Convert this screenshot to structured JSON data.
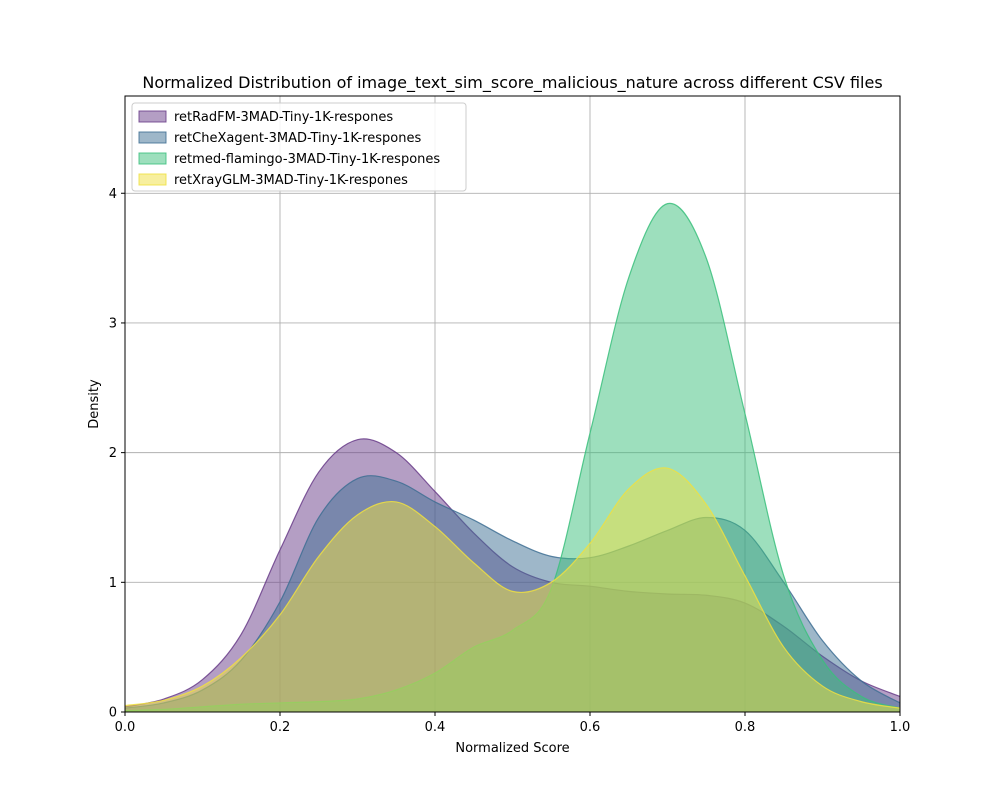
{
  "chart_data": {
    "type": "area",
    "title": "Normalized Distribution of image_text_sim_score_malicious_nature across different CSV files",
    "xlabel": "Normalized Score",
    "ylabel": "Density",
    "xlim": [
      0.0,
      1.0
    ],
    "ylim": [
      0,
      4.75
    ],
    "xticks": [
      "0.0",
      "0.2",
      "0.4",
      "0.6",
      "0.8",
      "1.0"
    ],
    "yticks": [
      "0",
      "1",
      "2",
      "3",
      "4"
    ],
    "grid": true,
    "legend_position": "top-left",
    "x": [
      0.0,
      0.05,
      0.1,
      0.15,
      0.2,
      0.25,
      0.3,
      0.35,
      0.4,
      0.45,
      0.5,
      0.55,
      0.6,
      0.65,
      0.7,
      0.75,
      0.8,
      0.85,
      0.9,
      0.95,
      1.0
    ],
    "series": [
      {
        "name": "retRadFM-3MAD-Tiny-1K-respones",
        "color": "#6a3d8a",
        "values": [
          0.04,
          0.1,
          0.25,
          0.6,
          1.25,
          1.85,
          2.1,
          2.0,
          1.7,
          1.38,
          1.12,
          1.0,
          0.97,
          0.93,
          0.91,
          0.9,
          0.84,
          0.66,
          0.43,
          0.24,
          0.12
        ]
      },
      {
        "name": "retCheXagent-3MAD-Tiny-1K-respones",
        "color": "#3e6f93",
        "values": [
          0.03,
          0.07,
          0.17,
          0.4,
          0.85,
          1.5,
          1.8,
          1.78,
          1.62,
          1.48,
          1.32,
          1.2,
          1.19,
          1.28,
          1.4,
          1.5,
          1.4,
          1.0,
          0.55,
          0.24,
          0.07
        ]
      },
      {
        "name": "retmed-flamingo-3MAD-Tiny-1K-respones",
        "color": "#3bbf7c",
        "values": [
          0.01,
          0.02,
          0.04,
          0.06,
          0.07,
          0.08,
          0.1,
          0.17,
          0.3,
          0.5,
          0.63,
          0.95,
          2.15,
          3.35,
          3.92,
          3.5,
          2.3,
          1.05,
          0.4,
          0.12,
          0.03
        ]
      },
      {
        "name": "retXrayGLM-3MAD-Tiny-1K-respones",
        "color": "#f0e040",
        "values": [
          0.05,
          0.09,
          0.2,
          0.42,
          0.75,
          1.2,
          1.52,
          1.62,
          1.43,
          1.15,
          0.93,
          1.0,
          1.3,
          1.72,
          1.88,
          1.6,
          1.05,
          0.5,
          0.2,
          0.08,
          0.03
        ]
      }
    ]
  }
}
